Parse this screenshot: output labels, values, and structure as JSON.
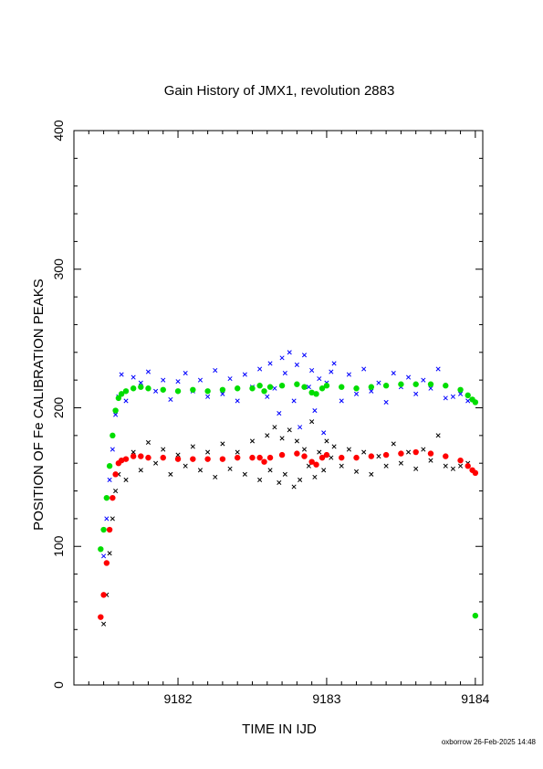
{
  "chart_data": {
    "type": "scatter",
    "title": "Gain History of JMX1, revolution 2883",
    "xlabel": "TIME IN IJD",
    "ylabel": "POSITION OF Fe CALIBRATION PEAKS",
    "xlim": [
      9181.3,
      9184.05
    ],
    "ylim": [
      0,
      400
    ],
    "xticks": [
      9182,
      9183,
      9184
    ],
    "yticks": [
      0,
      100,
      200,
      300,
      400
    ],
    "grid": false,
    "series": [
      {
        "color": "#0000ff",
        "marker": "x",
        "x": [
          9181.5,
          9181.52,
          9181.54,
          9181.56,
          9181.58,
          9181.6,
          9181.62,
          9181.65,
          9181.7,
          9181.75,
          9181.8,
          9181.85,
          9181.9,
          9181.95,
          9182.0,
          9182.05,
          9182.1,
          9182.15,
          9182.2,
          9182.25,
          9182.3,
          9182.35,
          9182.4,
          9182.45,
          9182.5,
          9182.55,
          9182.6,
          9182.62,
          9182.65,
          9182.68,
          9182.7,
          9182.72,
          9182.75,
          9182.78,
          9182.8,
          9182.82,
          9182.85,
          9182.88,
          9182.9,
          9182.92,
          9182.95,
          9182.98,
          9183.0,
          9183.03,
          9183.05,
          9183.1,
          9183.15,
          9183.2,
          9183.25,
          9183.3,
          9183.35,
          9183.4,
          9183.45,
          9183.5,
          9183.55,
          9183.6,
          9183.65,
          9183.7,
          9183.75,
          9183.8,
          9183.85,
          9183.9,
          9183.95
        ],
        "y": [
          93,
          120,
          148,
          170,
          195,
          208,
          224,
          205,
          222,
          218,
          226,
          212,
          220,
          206,
          219,
          225,
          212,
          220,
          208,
          227,
          210,
          221,
          205,
          224,
          215,
          228,
          208,
          232,
          214,
          196,
          236,
          225,
          240,
          205,
          231,
          186,
          238,
          215,
          227,
          198,
          221,
          182,
          218,
          226,
          232,
          205,
          224,
          210,
          228,
          212,
          218,
          204,
          225,
          215,
          222,
          210,
          220,
          214,
          228,
          207,
          208,
          210,
          205
        ]
      },
      {
        "color": "#000000",
        "marker": "x",
        "x": [
          9181.5,
          9181.52,
          9181.54,
          9181.56,
          9181.58,
          9181.6,
          9181.62,
          9181.65,
          9181.7,
          9181.75,
          9181.8,
          9181.85,
          9181.9,
          9181.95,
          9182.0,
          9182.05,
          9182.1,
          9182.15,
          9182.2,
          9182.25,
          9182.3,
          9182.35,
          9182.4,
          9182.45,
          9182.5,
          9182.55,
          9182.6,
          9182.62,
          9182.65,
          9182.68,
          9182.7,
          9182.72,
          9182.75,
          9182.78,
          9182.8,
          9182.82,
          9182.85,
          9182.88,
          9182.9,
          9182.92,
          9182.95,
          9182.98,
          9183.0,
          9183.03,
          9183.05,
          9183.1,
          9183.15,
          9183.2,
          9183.25,
          9183.3,
          9183.35,
          9183.4,
          9183.45,
          9183.5,
          9183.55,
          9183.6,
          9183.65,
          9183.7,
          9183.75,
          9183.8,
          9183.85,
          9183.9,
          9183.95
        ],
        "y": [
          44,
          65,
          95,
          120,
          140,
          152,
          162,
          148,
          168,
          155,
          175,
          160,
          170,
          152,
          166,
          158,
          172,
          155,
          168,
          150,
          174,
          156,
          168,
          152,
          176,
          148,
          180,
          155,
          186,
          146,
          178,
          152,
          184,
          143,
          176,
          148,
          170,
          158,
          190,
          150,
          168,
          155,
          176,
          164,
          172,
          158,
          170,
          154,
          168,
          152,
          165,
          158,
          174,
          160,
          168,
          156,
          170,
          162,
          180,
          158,
          156,
          158,
          160
        ]
      },
      {
        "color": "#00dd00",
        "marker": "dot",
        "x": [
          9181.48,
          9181.5,
          9181.52,
          9181.54,
          9181.56,
          9181.58,
          9181.6,
          9181.62,
          9181.65,
          9181.7,
          9181.75,
          9181.8,
          9181.9,
          9182.0,
          9182.1,
          9182.2,
          9182.3,
          9182.4,
          9182.5,
          9182.55,
          9182.58,
          9182.62,
          9182.7,
          9182.8,
          9182.85,
          9182.9,
          9182.93,
          9182.97,
          9183.0,
          9183.1,
          9183.2,
          9183.3,
          9183.4,
          9183.5,
          9183.6,
          9183.7,
          9183.8,
          9183.9,
          9183.95,
          9183.98,
          9184.0
        ],
        "y": [
          98,
          112,
          135,
          158,
          180,
          198,
          207,
          210,
          212,
          214,
          215,
          214,
          213,
          212,
          213,
          212,
          213,
          214,
          214,
          216,
          212,
          215,
          216,
          217,
          215,
          211,
          210,
          214,
          216,
          215,
          214,
          215,
          216,
          217,
          217,
          217,
          216,
          213,
          209,
          206,
          204
        ]
      },
      {
        "color": "#ff0000",
        "marker": "dot",
        "x": [
          9181.48,
          9181.5,
          9181.52,
          9181.54,
          9181.56,
          9181.58,
          9181.6,
          9181.62,
          9181.65,
          9181.7,
          9181.75,
          9181.8,
          9181.9,
          9182.0,
          9182.1,
          9182.2,
          9182.3,
          9182.4,
          9182.5,
          9182.55,
          9182.58,
          9182.62,
          9182.7,
          9182.8,
          9182.85,
          9182.9,
          9182.93,
          9182.97,
          9183.0,
          9183.1,
          9183.2,
          9183.3,
          9183.4,
          9183.5,
          9183.6,
          9183.7,
          9183.8,
          9183.9,
          9183.95,
          9183.98,
          9184.0
        ],
        "y": [
          49,
          65,
          88,
          112,
          135,
          152,
          160,
          162,
          163,
          165,
          165,
          164,
          164,
          163,
          163,
          163,
          163,
          164,
          164,
          164,
          161,
          164,
          166,
          167,
          165,
          161,
          159,
          164,
          166,
          164,
          164,
          165,
          166,
          167,
          168,
          167,
          165,
          162,
          158,
          155,
          153
        ]
      },
      {
        "color": "#00dd00",
        "marker": "dot",
        "x": [
          9184.0
        ],
        "y": [
          50
        ]
      }
    ],
    "footer": "oxborrow 26-Feb-2025 14:48"
  }
}
